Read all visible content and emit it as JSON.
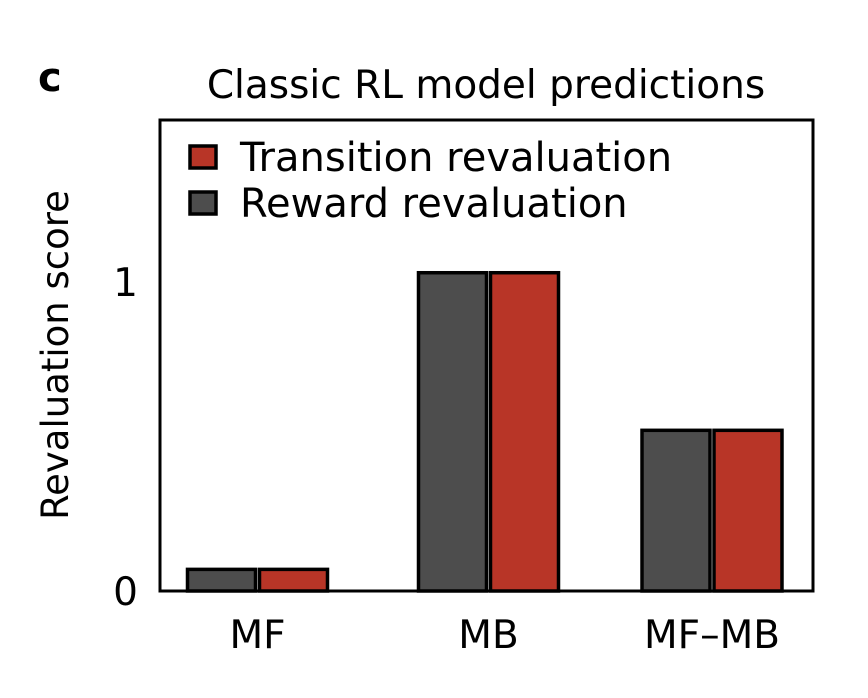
{
  "panel_label": "c",
  "chart_data": {
    "type": "bar",
    "title": "Classic RL model predictions",
    "xlabel": "",
    "ylabel": "Revaluation score",
    "categories": [
      "MF",
      "MB",
      "MF–MB"
    ],
    "series": [
      {
        "name": "Reward revaluation",
        "color": "#4d4d4d",
        "values": [
          0.07,
          1.03,
          0.52
        ]
      },
      {
        "name": "Transition revaluation",
        "color": "#b83527",
        "values": [
          0.07,
          1.03,
          0.52
        ]
      }
    ],
    "legend_order": [
      "Transition revaluation",
      "Reward revaluation"
    ],
    "yticks": [
      0,
      1
    ],
    "ylim": [
      0,
      1.55
    ],
    "grid": false,
    "legend_position": "top-left"
  }
}
